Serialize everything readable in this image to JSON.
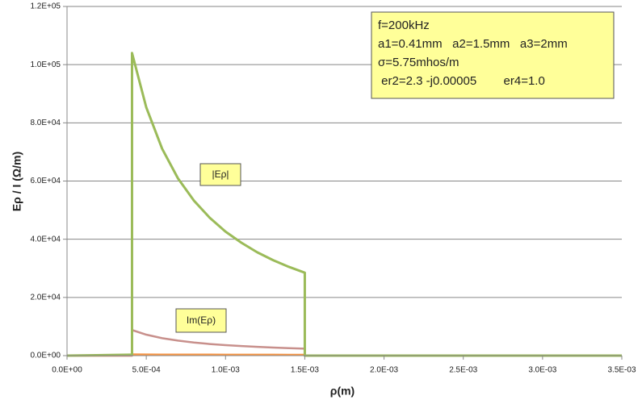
{
  "chart_data": {
    "type": "line",
    "x_label": "ρ(m)",
    "y_label": "Eρ / I (Ω/m)",
    "x": [
      0,
      0.0004,
      0.00041,
      0.00041,
      0.0005,
      0.0006,
      0.0007,
      0.0008,
      0.0009,
      0.001,
      0.0011,
      0.0012,
      0.0013,
      0.0014,
      0.0015,
      0.0015,
      0.002,
      0.0025,
      0.003,
      0.0035
    ],
    "series": [
      {
        "color": "#f79646",
        "values": [
          0,
          0,
          0,
          400,
          380,
          360,
          350,
          340,
          330,
          320,
          310,
          300,
          300,
          290,
          290,
          0,
          0,
          0,
          0,
          0
        ]
      },
      {
        "name": "Im(Eρ)",
        "color": "#c8908c",
        "values": [
          0,
          0,
          0,
          8800,
          7200,
          6000,
          5150,
          4500,
          4000,
          3600,
          3280,
          3000,
          2780,
          2580,
          2400,
          0,
          0,
          0,
          0,
          0
        ]
      },
      {
        "name": "|Eρ|",
        "color": "#9bbb59",
        "values": [
          0,
          300,
          300,
          104000,
          85300,
          71100,
          60900,
          53300,
          47400,
          42600,
          38800,
          35500,
          32800,
          30500,
          28500,
          0,
          0,
          0,
          0,
          0
        ]
      }
    ],
    "xlim": [
      0,
      0.0035
    ],
    "ylim": [
      0,
      120000
    ],
    "xticks": [
      {
        "value": 0,
        "label": "0.0E+00"
      },
      {
        "value": 0.0005,
        "label": "5.0E-04"
      },
      {
        "value": 0.001,
        "label": "1.0E-03"
      },
      {
        "value": 0.0015,
        "label": "1.5E-03"
      },
      {
        "value": 0.002,
        "label": "2.0E-03"
      },
      {
        "value": 0.0025,
        "label": "2.5E-03"
      },
      {
        "value": 0.003,
        "label": "3.0E-03"
      },
      {
        "value": 0.0035,
        "label": "3.5E-03"
      }
    ],
    "yticks": [
      {
        "value": 0,
        "label": "0.0E+00"
      },
      {
        "value": 20000,
        "label": "2.0E+04"
      },
      {
        "value": 40000,
        "label": "4.0E+04"
      },
      {
        "value": 60000,
        "label": "6.0E+04"
      },
      {
        "value": 80000,
        "label": "8.0E+04"
      },
      {
        "value": 100000,
        "label": "1.0E+05"
      },
      {
        "value": 120000,
        "label": "1.2E+05"
      }
    ],
    "grid": true,
    "info_box": [
      "f=200kHz",
      "a1=0.41mm   a2=1.5mm   a3=2mm",
      "σ=5.75mhos/m",
      " er2=2.3 -j0.00005        er4=1.0"
    ]
  }
}
